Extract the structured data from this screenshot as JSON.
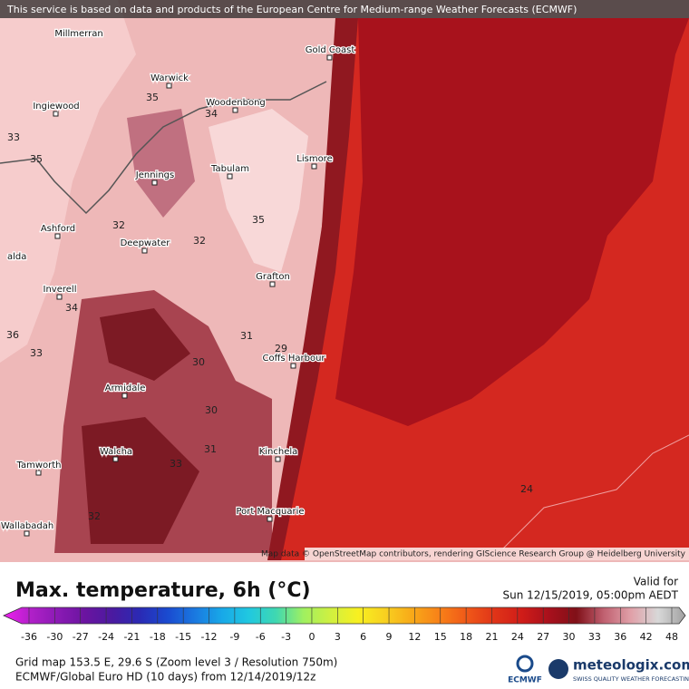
{
  "header": {
    "notice": "This service is based on data and products of the European Centre for Medium-range Weather Forecasts (ECMWF)"
  },
  "map": {
    "places": [
      "Millmerran",
      "Gold Coast",
      "Warwick",
      "Ingiewood",
      "Woodenbong",
      "Lismore",
      "Jennings",
      "Tabulam",
      "Ashford",
      "Deepwater",
      "alda",
      "Inverell",
      "Grafton",
      "Coffs Harbour",
      "Armidale",
      "Walcha",
      "Kinchela",
      "Tamworth",
      "Port Macquarie",
      "Wallabadah"
    ],
    "contour_labels": [
      35,
      34,
      33,
      35,
      32,
      32,
      35,
      34,
      36,
      33,
      31,
      30,
      30,
      31,
      33,
      32,
      24,
      29
    ],
    "attribution": "Map data © OpenStreetMap contributors, rendering GIScience Research Group @ Heidelberg University"
  },
  "legend": {
    "title": "Max. temperature, 6h (°C)",
    "valid_label": "Valid for",
    "valid_time": "Sun 12/15/2019, 05:00pm AEDT",
    "ticks": [
      -36,
      -30,
      -27,
      -24,
      -21,
      -18,
      -15,
      -12,
      -9,
      -6,
      -3,
      0,
      3,
      6,
      9,
      12,
      15,
      18,
      21,
      24,
      27,
      30,
      33,
      36,
      42,
      48
    ],
    "colors": [
      "#f020f0",
      "#b020c8",
      "#8a1ab4",
      "#6a14a0",
      "#4a1aa0",
      "#2a2ab4",
      "#1a4ad0",
      "#1a78e0",
      "#18a8e8",
      "#20c8e0",
      "#40d8b0",
      "#a0f060",
      "#d0f040",
      "#f8f020",
      "#f8d020",
      "#f8a818",
      "#f88018",
      "#f05818",
      "#e03418",
      "#d01c18",
      "#a8101c",
      "#801018",
      "#c06070",
      "#e0a0a8",
      "#d8d8d8",
      "#a0a0a0"
    ]
  },
  "footer": {
    "line1": "Grid map 153.5 E, 29.6 S (Zoom level 3 / Resolution 750m)",
    "line2": "ECMWF/Global Euro HD (10 days) from 12/14/2019/12z",
    "ecmwf": "ECMWF",
    "brand": "meteologix.com",
    "tagline": "SWISS QUALITY WEATHER FORECASTING"
  }
}
